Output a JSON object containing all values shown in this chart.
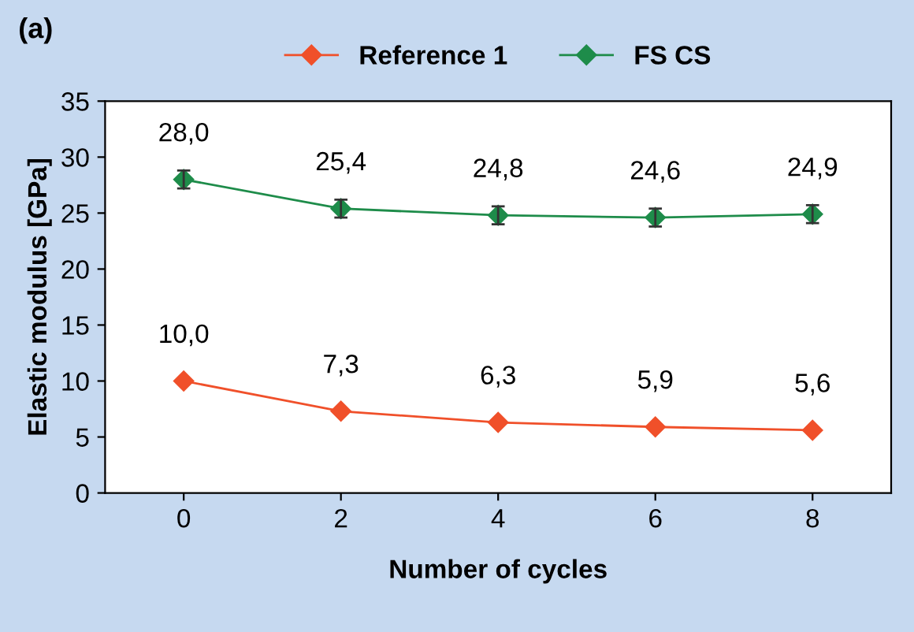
{
  "chart_data": {
    "type": "line",
    "title": "(a)",
    "xlabel": "Number of cycles",
    "ylabel": "Elastic modulus [GPa]",
    "x": [
      0,
      2,
      4,
      6,
      8
    ],
    "xlim": [
      -1,
      9
    ],
    "xticks": [
      0,
      2,
      4,
      6,
      8
    ],
    "ylim": [
      0,
      35
    ],
    "yticks": [
      0,
      5,
      10,
      15,
      20,
      25,
      30,
      35
    ],
    "series": [
      {
        "name": "Reference 1",
        "color": "#f0502a",
        "values": [
          10.0,
          7.3,
          6.3,
          5.9,
          5.6
        ],
        "value_labels": [
          "10,0",
          "7,3",
          "6,3",
          "5,9",
          "5,6"
        ]
      },
      {
        "name": "FS CS",
        "color": "#1e8c4a",
        "values": [
          28.0,
          25.4,
          24.8,
          24.6,
          24.9
        ],
        "value_labels": [
          "28,0",
          "25,4",
          "24,8",
          "24,6",
          "24,9"
        ],
        "errors": [
          0.8,
          0.8,
          0.8,
          0.8,
          0.8
        ]
      }
    ],
    "marker": "diamond",
    "line_style": "solid",
    "grid": false,
    "legend": "top"
  }
}
